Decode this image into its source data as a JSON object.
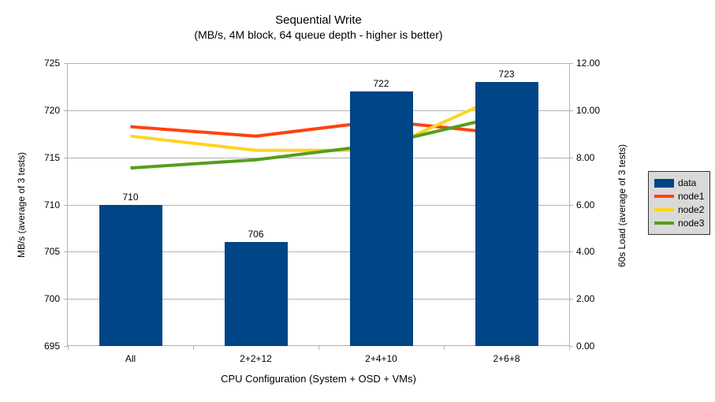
{
  "window": {
    "kind": "chart-screenshot"
  },
  "chart_data": {
    "type": "bar+line",
    "title": "Sequential Write",
    "subtitle": "(MB/s, 4M block, 64 queue depth - higher is better)",
    "categories": [
      "All",
      "2+2+12",
      "2+4+10",
      "2+6+8"
    ],
    "bar_series": {
      "name": "data",
      "axis": "left",
      "color": "#004586",
      "values": [
        710,
        706,
        722,
        723
      ],
      "data_labels": [
        "710",
        "706",
        "722",
        "723"
      ]
    },
    "line_series": [
      {
        "name": "node1",
        "axis": "right",
        "color": "#FF420E",
        "values": [
          9.3,
          8.9,
          9.55,
          9.0
        ]
      },
      {
        "name": "node2",
        "axis": "right",
        "color": "#FFD320",
        "values": [
          8.9,
          8.3,
          8.3,
          10.7
        ]
      },
      {
        "name": "node3",
        "axis": "right",
        "color": "#579D1C",
        "values": [
          7.55,
          7.9,
          8.55,
          9.8
        ]
      }
    ],
    "left_axis": {
      "title": "MB/s (average of 3 tests)",
      "min": 695,
      "max": 725,
      "step": 5,
      "tick_labels": [
        "725",
        "720",
        "715",
        "710",
        "705",
        "700",
        "695"
      ]
    },
    "right_axis": {
      "title": "60s Load (average of 3 tests)",
      "min": 0,
      "max": 12,
      "step": 2,
      "tick_labels": [
        "12.00",
        "10.00",
        "8.00",
        "6.00",
        "4.00",
        "2.00",
        "0.00"
      ]
    },
    "x_axis": {
      "title": "CPU Configuration (System + OSD + VMs)"
    },
    "legend": {
      "position": "right",
      "background": "#d9d9d9",
      "items": [
        {
          "label": "data",
          "color": "#004586",
          "marker": "rect"
        },
        {
          "label": "node1",
          "color": "#FF420E",
          "marker": "line"
        },
        {
          "label": "node2",
          "color": "#FFD320",
          "marker": "line"
        },
        {
          "label": "node3",
          "color": "#579D1C",
          "marker": "line"
        }
      ]
    },
    "grid": "horizontal",
    "grid_color": "#b3b3b3",
    "axis_color": "#b3b3b3",
    "text_color": "#000000",
    "background": "#ffffff"
  }
}
